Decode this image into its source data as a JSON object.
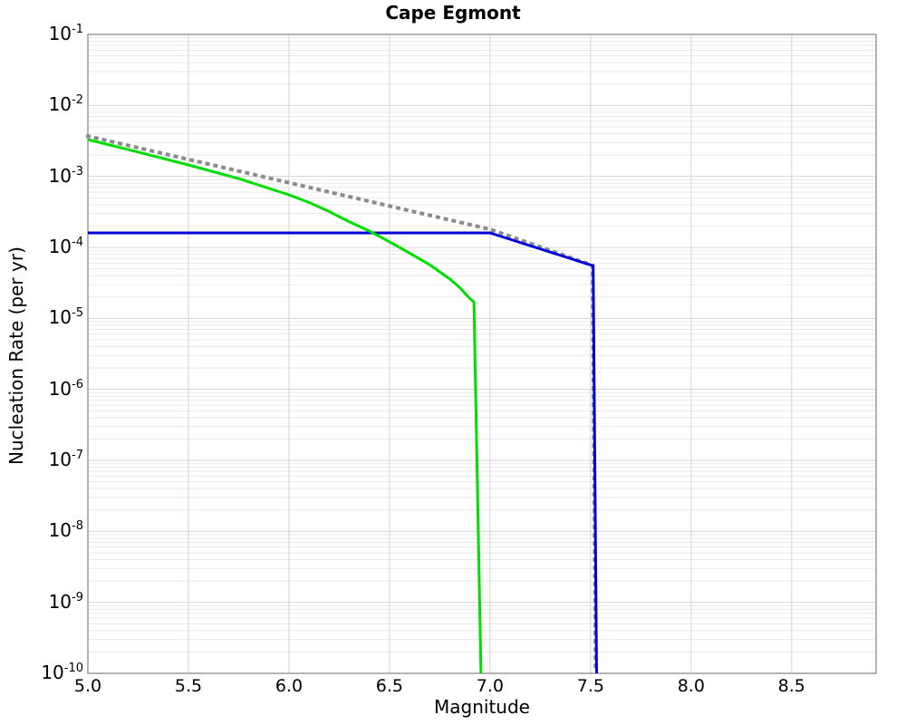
{
  "figure": {
    "background_color": "#ffffff",
    "frame_color": "#9a9a9a",
    "grid_major_color": "#d4d4d4",
    "grid_minor_color": "#e9e9e9"
  },
  "chart_data": {
    "type": "line",
    "title": "Cape Egmont",
    "xlabel": "Magnitude",
    "ylabel": "Nucleation Rate (per yr)",
    "x_axis_scale": "linear",
    "y_axis_scale": "log",
    "xlim": [
      5.0,
      8.92
    ],
    "ylim_exp": [
      -10,
      -1
    ],
    "x_ticks": [
      5.0,
      5.5,
      6.0,
      6.5,
      7.0,
      7.5,
      8.0,
      8.5
    ],
    "y_tick_exponents": [
      -1,
      -2,
      -3,
      -4,
      -5,
      -6,
      -7,
      -8,
      -9,
      -10
    ],
    "y_tick_base": "10",
    "grid": {
      "vertical_at_major_x": true,
      "horizontal_decades": true,
      "horizontal_log_minors": true
    },
    "legend_position": "none",
    "series": [
      {
        "name": "gray-dotted-line",
        "color": "#8a8a8a",
        "style": "dotted",
        "width": 4,
        "points": [
          [
            5.0,
            0.0037
          ],
          [
            7.0,
            0.00018
          ],
          [
            7.51,
            5.6e-05
          ],
          [
            7.525,
            1e-10
          ]
        ]
      },
      {
        "name": "blue-solid-line",
        "color": "#0000dd",
        "style": "solid",
        "width": 3,
        "points": [
          [
            5.0,
            0.00016
          ],
          [
            7.0,
            0.00016
          ],
          [
            7.513,
            5.5e-05
          ],
          [
            7.53,
            1e-10
          ]
        ]
      },
      {
        "name": "green-solid-line",
        "color": "#00dd00",
        "style": "solid",
        "width": 3,
        "points": [
          [
            5.0,
            0.0033
          ],
          [
            5.25,
            0.0022
          ],
          [
            5.5,
            0.00145
          ],
          [
            5.75,
            0.00093
          ],
          [
            6.0,
            0.00055
          ],
          [
            6.1,
            0.00043
          ],
          [
            6.2,
            0.00032
          ],
          [
            6.3,
            0.00023
          ],
          [
            6.4,
            0.00017
          ],
          [
            6.5,
            0.00012
          ],
          [
            6.6,
            8.3e-05
          ],
          [
            6.7,
            5.7e-05
          ],
          [
            6.8,
            3.6e-05
          ],
          [
            6.85,
            2.7e-05
          ],
          [
            6.9,
            1.9e-05
          ],
          [
            6.92,
            1.7e-05
          ],
          [
            6.955,
            1e-10
          ]
        ]
      }
    ]
  }
}
